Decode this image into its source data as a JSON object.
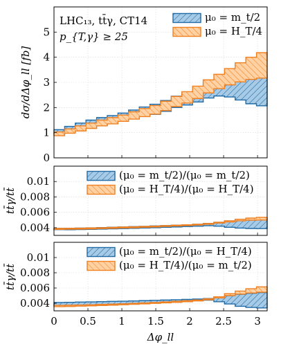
{
  "colors": {
    "blue_fill": "#a7cbe6",
    "blue_line": "#1f6aa5",
    "orange_fill": "#ffd1a3",
    "orange_line": "#f08020"
  },
  "chart_data": [
    {
      "type": "area",
      "panel": "top",
      "annotation": [
        "LHC₁₃, tt̄γ, CT14",
        "p_{T,γ} ≥ 25"
      ],
      "ylabel": "dσ/dΔφ_ll [fb]",
      "xlabel": "",
      "xlim": [
        0,
        3.1416
      ],
      "ylim": [
        0,
        6
      ],
      "yticks": [
        "0",
        "1",
        "2",
        "3",
        "4",
        "5"
      ],
      "grid": true,
      "legend_position": "top-right",
      "bins": [
        0,
        0.1571,
        0.3142,
        0.4712,
        0.6283,
        0.7854,
        0.9425,
        1.0996,
        1.2566,
        1.4137,
        1.5708,
        1.7279,
        1.885,
        2.042,
        2.1991,
        2.3562,
        2.5133,
        2.6704,
        2.8274,
        2.9845,
        3.1416
      ],
      "series": [
        {
          "name": "μ₀ = m_t/2",
          "color": "blue",
          "lower": [
            0.92,
            1.0,
            1.1,
            1.2,
            1.3,
            1.37,
            1.47,
            1.56,
            1.65,
            1.73,
            1.85,
            2.0,
            2.1,
            2.22,
            2.38,
            2.46,
            2.42,
            2.3,
            2.15,
            2.07
          ],
          "upper": [
            1.12,
            1.25,
            1.38,
            1.5,
            1.6,
            1.68,
            1.78,
            1.9,
            2.02,
            2.13,
            2.28,
            2.45,
            2.6,
            2.77,
            2.95,
            3.1,
            3.2,
            3.25,
            3.27,
            3.3
          ]
        },
        {
          "name": "μ₀ = H_T/4",
          "color": "orange",
          "lower": [
            0.88,
            0.98,
            1.07,
            1.17,
            1.27,
            1.35,
            1.45,
            1.54,
            1.64,
            1.74,
            1.88,
            2.04,
            2.18,
            2.36,
            2.58,
            2.75,
            2.9,
            3.02,
            3.12,
            3.17
          ],
          "upper": [
            1.03,
            1.15,
            1.27,
            1.38,
            1.5,
            1.6,
            1.7,
            1.83,
            1.96,
            2.08,
            2.25,
            2.44,
            2.63,
            2.85,
            3.1,
            3.32,
            3.55,
            3.78,
            4.0,
            4.18
          ]
        }
      ]
    },
    {
      "type": "area",
      "panel": "middle",
      "ylabel": "tt̄γ/tt̄",
      "xlim": [
        0,
        3.1416
      ],
      "ylim": [
        0.003,
        0.012
      ],
      "yticks": [
        "0.004",
        "0.006",
        "0.008",
        "0.01"
      ],
      "grid": true,
      "legend_position": "top-right",
      "bins": [
        0,
        0.1571,
        0.3142,
        0.4712,
        0.6283,
        0.7854,
        0.9425,
        1.0996,
        1.2566,
        1.4137,
        1.5708,
        1.7279,
        1.885,
        2.042,
        2.1991,
        2.3562,
        2.5133,
        2.6704,
        2.8274,
        2.9845,
        3.1416
      ],
      "series": [
        {
          "name": "(μ₀ = m_t/2)/(μ₀ = m_t/2)",
          "color": "blue",
          "lower": [
            0.00375,
            0.00374,
            0.00376,
            0.00378,
            0.00382,
            0.00385,
            0.00388,
            0.00392,
            0.00396,
            0.004,
            0.00405,
            0.0041,
            0.00415,
            0.0042,
            0.00425,
            0.0042,
            0.00405,
            0.00395,
            0.0039,
            0.00388
          ],
          "upper": [
            0.0039,
            0.00392,
            0.00395,
            0.00398,
            0.00402,
            0.00406,
            0.0041,
            0.00414,
            0.00418,
            0.00423,
            0.00428,
            0.00433,
            0.00438,
            0.00445,
            0.00455,
            0.0047,
            0.00488,
            0.00505,
            0.00512,
            0.0052
          ]
        },
        {
          "name": "(μ₀ = H_T/4)/(μ₀ = H_T/4)",
          "color": "orange",
          "lower": [
            0.00378,
            0.0038,
            0.00382,
            0.00384,
            0.00388,
            0.00392,
            0.00396,
            0.004,
            0.00405,
            0.0041,
            0.00416,
            0.00422,
            0.00428,
            0.00435,
            0.00445,
            0.0046,
            0.00475,
            0.0049,
            0.00498,
            0.005
          ],
          "upper": [
            0.0039,
            0.00392,
            0.00394,
            0.00397,
            0.004,
            0.00404,
            0.00408,
            0.00412,
            0.00416,
            0.00421,
            0.00426,
            0.00432,
            0.00438,
            0.00445,
            0.00455,
            0.0047,
            0.0049,
            0.0051,
            0.00525,
            0.00535
          ]
        }
      ]
    },
    {
      "type": "area",
      "panel": "bottom",
      "ylabel": "tt̄γ/tt̄",
      "xlabel": "Δφ_ll",
      "xlim": [
        0,
        3.1416
      ],
      "ylim": [
        0.003,
        0.012
      ],
      "yticks": [
        "0.004",
        "0.006",
        "0.008",
        "0.01"
      ],
      "xticks": [
        "0",
        "0.5",
        "1",
        "1.5",
        "2",
        "2.5",
        "3"
      ],
      "grid": true,
      "legend_position": "top-right",
      "bins": [
        0,
        0.1571,
        0.3142,
        0.4712,
        0.6283,
        0.7854,
        0.9425,
        1.0996,
        1.2566,
        1.4137,
        1.5708,
        1.7279,
        1.885,
        2.042,
        2.1991,
        2.3562,
        2.5133,
        2.6704,
        2.8274,
        2.9845,
        3.1416
      ],
      "series": [
        {
          "name": "(μ₀ = m_t/2)/(μ₀ = H_T/4)",
          "color": "blue",
          "lower": [
            0.0037,
            0.00372,
            0.00375,
            0.00378,
            0.00382,
            0.00386,
            0.0039,
            0.00395,
            0.004,
            0.00405,
            0.00412,
            0.0042,
            0.00428,
            0.00435,
            0.0044,
            0.0042,
            0.0039,
            0.0036,
            0.00345,
            0.00338
          ],
          "upper": [
            0.0041,
            0.00412,
            0.00415,
            0.00418,
            0.00421,
            0.00424,
            0.00427,
            0.0043,
            0.00434,
            0.00438,
            0.00442,
            0.00446,
            0.0045,
            0.00455,
            0.00462,
            0.0048,
            0.005,
            0.00518,
            0.0053,
            0.0054
          ]
        },
        {
          "name": "(μ₀ = H_T/4)/(μ₀ = m_t/2)",
          "color": "orange",
          "lower": [
            0.00355,
            0.00358,
            0.00362,
            0.00366,
            0.0037,
            0.00375,
            0.0038,
            0.00386,
            0.00392,
            0.00398,
            0.00405,
            0.00412,
            0.0042,
            0.0043,
            0.00445,
            0.0047,
            0.005,
            0.0052,
            0.00535,
            0.00545
          ],
          "upper": [
            0.00372,
            0.00374,
            0.00377,
            0.0038,
            0.00384,
            0.00388,
            0.00393,
            0.00398,
            0.00404,
            0.0041,
            0.00417,
            0.00425,
            0.00433,
            0.00443,
            0.00458,
            0.00485,
            0.00525,
            0.0056,
            0.0059,
            0.00615
          ]
        }
      ]
    }
  ]
}
